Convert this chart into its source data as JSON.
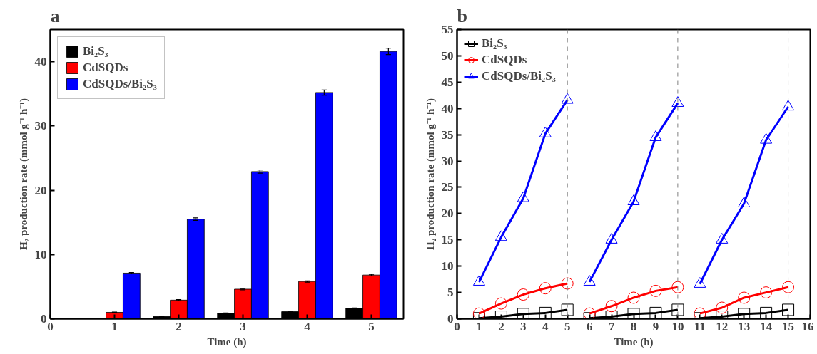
{
  "chart_data": [
    {
      "type": "bar",
      "title": "a",
      "xlabel": "Time (h)",
      "ylabel": "H₂ production rate (mmol g⁻¹ h⁻¹)",
      "x": [
        1,
        2,
        3,
        4,
        5
      ],
      "xlim": [
        0,
        5.5
      ],
      "xticks": [
        0,
        1,
        2,
        3,
        4,
        5
      ],
      "ylim": [
        0,
        45
      ],
      "yticks": [
        0,
        10,
        20,
        30,
        40
      ],
      "grid": false,
      "legend": "top left",
      "series": [
        {
          "name": "Bi₂S₃",
          "color": "#000000",
          "values": [
            0,
            0.35,
            0.85,
            1.1,
            1.6
          ],
          "errors": [
            null,
            0.05,
            0.05,
            0.05,
            0.08
          ]
        },
        {
          "name": "CdSQDs",
          "color": "#ff0000",
          "values": [
            1.0,
            2.9,
            4.6,
            5.8,
            6.8
          ],
          "errors": [
            0.05,
            0.08,
            0.1,
            0.1,
            0.12
          ]
        },
        {
          "name": "CdSQDs/Bi₂S₃",
          "color": "#0000ff",
          "values": [
            7.1,
            15.5,
            22.9,
            35.2,
            41.6
          ],
          "errors": [
            0.1,
            0.2,
            0.25,
            0.4,
            0.5
          ]
        }
      ]
    },
    {
      "type": "line",
      "title": "b",
      "xlabel": "Time (h)",
      "ylabel": "H₂ production rate (mmol g⁻¹ h⁻¹)",
      "xlim": [
        0,
        16
      ],
      "xticks": [
        0,
        1,
        2,
        3,
        4,
        5,
        6,
        7,
        8,
        9,
        10,
        11,
        12,
        13,
        14,
        15,
        16
      ],
      "ylim": [
        0,
        55
      ],
      "yticks": [
        0,
        5,
        10,
        15,
        20,
        25,
        30,
        35,
        40,
        45,
        50,
        55
      ],
      "grid": false,
      "legend": "top left",
      "line_style": "solid",
      "ref_lines": [
        {
          "axis": "x",
          "value": 5,
          "color": "#808080",
          "line_style": "dashed"
        },
        {
          "axis": "x",
          "value": 10,
          "color": "#808080",
          "line_style": "dashed"
        },
        {
          "axis": "x",
          "value": 15,
          "color": "#808080",
          "line_style": "dashed"
        }
      ],
      "series": [
        {
          "name": "Bi₂S₃",
          "color": "#000000",
          "marker": "square",
          "x": [
            1,
            2,
            3,
            4,
            5
          ],
          "values": [
            0.1,
            0.4,
            0.9,
            1.1,
            1.7
          ]
        },
        {
          "color": "#000000",
          "marker": "square",
          "x": [
            6,
            7,
            8,
            9,
            10
          ],
          "values": [
            0.1,
            0.4,
            0.9,
            1.1,
            1.7
          ]
        },
        {
          "color": "#000000",
          "marker": "square",
          "x": [
            11,
            12,
            13,
            14,
            15
          ],
          "values": [
            0.1,
            0.4,
            0.9,
            1.1,
            1.7
          ]
        },
        {
          "name": "CdSQDs",
          "color": "#ff0000",
          "marker": "circle",
          "x": [
            1,
            2,
            3,
            4,
            5
          ],
          "values": [
            1.0,
            2.9,
            4.6,
            5.8,
            6.7
          ]
        },
        {
          "color": "#ff0000",
          "marker": "circle",
          "x": [
            6,
            7,
            8,
            9,
            10
          ],
          "values": [
            1.0,
            2.4,
            4.0,
            5.3,
            6.0
          ]
        },
        {
          "color": "#ff0000",
          "marker": "circle",
          "x": [
            11,
            12,
            13,
            14,
            15
          ],
          "values": [
            1.0,
            2.1,
            4.0,
            5.0,
            6.0
          ]
        },
        {
          "name": "CdSQDs/Bi₂S₃",
          "color": "#0000ff",
          "marker": "triangle",
          "x": [
            1,
            2,
            3,
            4,
            5
          ],
          "values": [
            7.0,
            15.5,
            22.9,
            35.2,
            41.6
          ]
        },
        {
          "color": "#0000ff",
          "marker": "triangle",
          "x": [
            6,
            7,
            8,
            9,
            10
          ],
          "values": [
            7.0,
            15.0,
            22.3,
            34.5,
            41.0
          ]
        },
        {
          "color": "#0000ff",
          "marker": "triangle",
          "x": [
            11,
            12,
            13,
            14,
            15
          ],
          "values": [
            6.6,
            15.0,
            21.9,
            34.0,
            40.3
          ]
        }
      ]
    }
  ]
}
